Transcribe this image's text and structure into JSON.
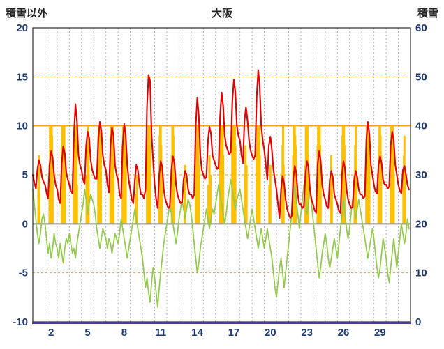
{
  "chart_data": {
    "type": "line+bar",
    "title": "大阪",
    "left_axis": {
      "label": "積雪以外",
      "min": -10,
      "max": 20,
      "ticks": [
        20,
        15,
        10,
        5,
        0,
        -5,
        -10
      ]
    },
    "right_axis": {
      "label": "積雪",
      "min": 0,
      "max": 60,
      "ticks": [
        60,
        50,
        40,
        30,
        20,
        10,
        0
      ]
    },
    "x_axis": {
      "days": 31,
      "tick_days": [
        2,
        5,
        8,
        11,
        14,
        17,
        20,
        23,
        26,
        29
      ]
    },
    "grid": {
      "vertical_per_day": true,
      "horizontal_lines": [
        15,
        10,
        5,
        -5
      ],
      "solid_horizontal_line": 10,
      "zero_line": 0
    },
    "colors": {
      "red_line": "#e00000",
      "green_line": "#92c94a",
      "orange_bars": "#ffc000",
      "vertical_grid": "#b3b3b3",
      "horizontal_grid": "#f0a202",
      "zero_line": "#8c8c8c",
      "plot_border": "#000000",
      "bottom_axis": "#4b3c8c",
      "axis_text": "#1f3a6e",
      "header_text": "#222222"
    },
    "sample_hours": [
      0,
      3,
      6,
      9,
      12,
      15,
      18,
      21
    ],
    "series": [
      {
        "name": "red-line",
        "axis": "left",
        "values": [
          5.0,
          4.2,
          3.6,
          5.5,
          6.5,
          6.0,
          4.8,
          4.3,
          4.0,
          3.2,
          2.6,
          6.0,
          7.4,
          6.8,
          5.0,
          4.0,
          3.5,
          2.5,
          2.1,
          6.2,
          7.9,
          7.2,
          5.2,
          4.5,
          4.0,
          3.3,
          3.1,
          9.0,
          12.2,
          10.5,
          7.0,
          6.0,
          5.5,
          4.5,
          4.1,
          8.0,
          9.4,
          8.8,
          6.5,
          5.5,
          5.0,
          4.6,
          4.6,
          8.5,
          10.4,
          9.5,
          7.0,
          6.0,
          5.5,
          4.0,
          3.2,
          8.0,
          9.8,
          9.0,
          6.0,
          5.0,
          4.5,
          3.0,
          2.6,
          8.0,
          10.2,
          9.0,
          6.0,
          4.5,
          3.5,
          2.5,
          2.1,
          4.5,
          6.0,
          5.5,
          4.0,
          3.0,
          3.0,
          2.6,
          3.5,
          12.0,
          15.2,
          14.6,
          9.0,
          6.5,
          4.0,
          2.5,
          1.6,
          5.0,
          6.4,
          5.8,
          3.5,
          2.5,
          2.0,
          1.6,
          1.8,
          5.5,
          6.9,
          6.2,
          4.0,
          3.0,
          2.5,
          2.1,
          2.2,
          4.5,
          5.4,
          5.0,
          3.5,
          3.0,
          3.0,
          2.6,
          3.0,
          10.0,
          12.9,
          11.0,
          7.0,
          5.5,
          5.0,
          4.6,
          4.8,
          8.5,
          9.9,
          9.2,
          7.0,
          6.5,
          6.0,
          5.6,
          5.8,
          11.0,
          13.4,
          12.0,
          9.0,
          8.0,
          7.5,
          7.1,
          7.3,
          12.5,
          14.7,
          13.5,
          10.0,
          9.0,
          8.5,
          7.0,
          6.2,
          10.5,
          11.9,
          10.5,
          8.5,
          7.5,
          7.0,
          6.6,
          7.0,
          13.0,
          15.7,
          14.0,
          10.0,
          8.5,
          7.5,
          6.0,
          4.5,
          8.0,
          8.9,
          7.5,
          5.5,
          4.5,
          3.5,
          2.0,
          0.6,
          3.5,
          4.9,
          4.2,
          2.5,
          1.5,
          1.0,
          0.6,
          0.8,
          4.5,
          5.9,
          5.2,
          3.0,
          2.0,
          2.0,
          1.6,
          1.8,
          5.0,
          6.4,
          5.8,
          3.5,
          2.5,
          2.0,
          1.4,
          1.1,
          6.0,
          7.4,
          6.5,
          4.0,
          3.0,
          2.5,
          1.8,
          1.6,
          4.5,
          5.4,
          4.8,
          3.0,
          2.5,
          2.0,
          1.3,
          1.1,
          5.0,
          6.4,
          5.6,
          3.5,
          2.5,
          2.0,
          1.6,
          1.7,
          4.5,
          5.4,
          4.8,
          3.5,
          3.0,
          3.0,
          2.6,
          2.8,
          8.5,
          10.4,
          9.2,
          6.0,
          5.0,
          4.0,
          3.3,
          3.1,
          6.0,
          6.9,
          6.2,
          4.5,
          4.0,
          4.0,
          3.6,
          3.8,
          8.0,
          9.4,
          8.5,
          6.0,
          5.0,
          4.0,
          3.4,
          3.1,
          5.5,
          5.9,
          5.0,
          4.0,
          3.5
        ]
      },
      {
        "name": "green-line",
        "axis": "left",
        "values": [
          3.5,
          2.0,
          0.5,
          -1.0,
          -2.0,
          -1.0,
          0.5,
          1.0,
          0.0,
          -1.5,
          -3.0,
          -2.0,
          -3.5,
          -2.5,
          -1.0,
          -2.0,
          -2.5,
          -3.5,
          -2.0,
          -3.0,
          -4.0,
          -2.5,
          -1.5,
          -2.0,
          -1.0,
          -2.0,
          -3.0,
          -2.5,
          -3.5,
          -2.0,
          -1.0,
          0.0,
          1.0,
          2.0,
          3.5,
          2.5,
          1.0,
          2.0,
          3.0,
          2.5,
          2.0,
          1.0,
          -0.5,
          -1.5,
          -2.5,
          -1.5,
          -0.5,
          -1.0,
          -1.5,
          -2.5,
          -1.5,
          -2.0,
          -3.0,
          -2.0,
          -1.0,
          -1.5,
          -2.0,
          -1.0,
          0.5,
          -0.5,
          -1.5,
          -2.5,
          -3.5,
          -2.5,
          -1.5,
          -0.5,
          0.5,
          1.5,
          0.5,
          -0.5,
          -1.5,
          -2.5,
          -3.5,
          -5.0,
          -6.5,
          -5.5,
          -7.0,
          -8.0,
          -6.0,
          -4.5,
          -5.5,
          -7.0,
          -8.5,
          -6.5,
          -5.0,
          -3.5,
          -2.0,
          -1.0,
          0.0,
          1.0,
          2.0,
          1.0,
          0.0,
          -1.0,
          -2.0,
          -1.0,
          0.5,
          1.5,
          2.5,
          1.5,
          0.5,
          1.5,
          2.5,
          2.0,
          1.0,
          -0.5,
          -2.0,
          -3.5,
          -5.0,
          -4.0,
          -2.5,
          -1.5,
          -0.5,
          0.5,
          1.5,
          0.5,
          -0.5,
          0.5,
          1.5,
          1.0,
          2.0,
          3.0,
          4.0,
          3.0,
          2.0,
          1.0,
          0.0,
          1.0,
          2.5,
          3.5,
          4.5,
          3.5,
          2.5,
          1.5,
          2.5,
          3.0,
          3.5,
          2.5,
          1.5,
          0.5,
          -0.5,
          -1.5,
          -0.5,
          0.5,
          1.5,
          0.5,
          -0.5,
          -1.5,
          -2.5,
          -1.5,
          -0.5,
          -1.5,
          -2.5,
          -1.5,
          -0.5,
          -1.5,
          -2.5,
          -3.5,
          -5.0,
          -6.5,
          -7.5,
          -6.0,
          -4.5,
          -3.5,
          -5.0,
          -6.5,
          -5.0,
          -3.5,
          -2.0,
          -0.5,
          1.0,
          2.5,
          4.0,
          2.5,
          1.0,
          -0.5,
          1.0,
          2.5,
          4.0,
          2.5,
          1.0,
          2.0,
          3.5,
          2.0,
          0.5,
          -1.0,
          -2.5,
          -4.0,
          -5.5,
          -4.5,
          -3.0,
          -2.0,
          -1.0,
          -2.0,
          -3.5,
          -4.5,
          -3.5,
          -2.5,
          -1.5,
          -2.5,
          -3.5,
          -2.0,
          -0.5,
          1.0,
          2.5,
          1.0,
          -0.5,
          -1.5,
          -0.5,
          1.0,
          2.5,
          1.5,
          0.5,
          1.5,
          2.5,
          1.5,
          0.5,
          -0.5,
          -1.5,
          -2.5,
          -3.5,
          -2.5,
          -1.5,
          -0.5,
          -1.5,
          -3.0,
          -4.5,
          -5.5,
          -4.5,
          -3.0,
          -1.5,
          -2.5,
          -3.5,
          -5.0,
          -6.0,
          -4.5,
          -3.0,
          -1.5,
          -3.0,
          -4.5,
          -3.0,
          -1.5,
          0.0,
          -1.0,
          -2.0,
          -1.0,
          0.5,
          -0.5
        ]
      }
    ],
    "orange_bars_by_day": {
      "1": [
        [
          11,
          4
        ],
        [
          12,
          7
        ],
        [
          13,
          3
        ]
      ],
      "2": [
        [
          9,
          6
        ],
        [
          10,
          10
        ],
        [
          11,
          10
        ],
        [
          12,
          10
        ],
        [
          13,
          10
        ],
        [
          14,
          9
        ],
        [
          15,
          5
        ]
      ],
      "3": [
        [
          9,
          8
        ],
        [
          10,
          10
        ],
        [
          11,
          10
        ],
        [
          12,
          10
        ],
        [
          13,
          10
        ],
        [
          14,
          10
        ],
        [
          15,
          6
        ]
      ],
      "4": [
        [
          9,
          7
        ],
        [
          10,
          10
        ],
        [
          11,
          10
        ],
        [
          12,
          10
        ],
        [
          13,
          9
        ],
        [
          14,
          10
        ],
        [
          15,
          4
        ]
      ],
      "5": [
        [
          10,
          5
        ],
        [
          12,
          8
        ],
        [
          13,
          10
        ],
        [
          14,
          6
        ]
      ],
      "6": [
        [
          9,
          9
        ],
        [
          10,
          10
        ],
        [
          11,
          10
        ],
        [
          12,
          10
        ],
        [
          13,
          10
        ],
        [
          14,
          8
        ]
      ],
      "7": [
        [
          9,
          6
        ],
        [
          10,
          10
        ],
        [
          11,
          9
        ],
        [
          12,
          10
        ],
        [
          13,
          10
        ],
        [
          14,
          10
        ],
        [
          15,
          5
        ]
      ],
      "8": [
        [
          9,
          8
        ],
        [
          10,
          10
        ],
        [
          11,
          10
        ],
        [
          12,
          10
        ],
        [
          13,
          10
        ],
        [
          14,
          9
        ],
        [
          15,
          7
        ]
      ],
      "9": [
        [
          11,
          3
        ],
        [
          13,
          5
        ]
      ],
      "10": [
        [
          9,
          9
        ],
        [
          10,
          10
        ],
        [
          11,
          10
        ],
        [
          12,
          10
        ],
        [
          13,
          10
        ],
        [
          14,
          10
        ],
        [
          15,
          8
        ]
      ],
      "11": [
        [
          9,
          5
        ],
        [
          10,
          9
        ],
        [
          11,
          10
        ],
        [
          12,
          10
        ],
        [
          13,
          8
        ],
        [
          14,
          6
        ]
      ],
      "12": [
        [
          10,
          7
        ],
        [
          11,
          10
        ],
        [
          12,
          10
        ],
        [
          13,
          9
        ],
        [
          14,
          5
        ]
      ],
      "13": [
        [
          11,
          4
        ],
        [
          12,
          6
        ]
      ],
      "14": [
        [
          9,
          8
        ],
        [
          10,
          10
        ],
        [
          11,
          10
        ],
        [
          12,
          10
        ],
        [
          13,
          10
        ],
        [
          14,
          9
        ],
        [
          15,
          6
        ]
      ],
      "15": [
        [
          10,
          4
        ],
        [
          12,
          7
        ],
        [
          14,
          5
        ]
      ],
      "16": [
        [
          9,
          7
        ],
        [
          10,
          10
        ],
        [
          11,
          10
        ],
        [
          12,
          10
        ],
        [
          13,
          10
        ],
        [
          14,
          10
        ],
        [
          15,
          7
        ]
      ],
      "17": [
        [
          9,
          8
        ],
        [
          10,
          10
        ],
        [
          11,
          10
        ],
        [
          12,
          10
        ],
        [
          13,
          10
        ],
        [
          14,
          10
        ],
        [
          15,
          8
        ]
      ],
      "18": [
        [
          10,
          5
        ],
        [
          11,
          8
        ],
        [
          13,
          6
        ]
      ],
      "19": [
        [
          9,
          8
        ],
        [
          10,
          10
        ],
        [
          11,
          10
        ],
        [
          12,
          10
        ],
        [
          13,
          10
        ],
        [
          14,
          10
        ],
        [
          15,
          7
        ]
      ],
      "20": [
        [
          10,
          4
        ],
        [
          12,
          6
        ]
      ],
      "21": [
        [
          11,
          5
        ],
        [
          12,
          8
        ],
        [
          13,
          10
        ],
        [
          14,
          6
        ]
      ],
      "22": [
        [
          9,
          7
        ],
        [
          10,
          10
        ],
        [
          11,
          10
        ],
        [
          12,
          10
        ],
        [
          13,
          9
        ],
        [
          14,
          8
        ]
      ],
      "23": [
        [
          9,
          6
        ],
        [
          10,
          10
        ],
        [
          11,
          10
        ],
        [
          12,
          10
        ],
        [
          13,
          10
        ],
        [
          14,
          7
        ]
      ],
      "24": [
        [
          9,
          8
        ],
        [
          10,
          10
        ],
        [
          11,
          10
        ],
        [
          12,
          9
        ],
        [
          13,
          10
        ],
        [
          14,
          8
        ],
        [
          15,
          5
        ]
      ],
      "25": [
        [
          11,
          4
        ],
        [
          12,
          7
        ],
        [
          13,
          5
        ]
      ],
      "26": [
        [
          9,
          6
        ],
        [
          10,
          9
        ],
        [
          11,
          10
        ],
        [
          12,
          10
        ],
        [
          13,
          10
        ],
        [
          14,
          8
        ]
      ],
      "27": [
        [
          10,
          5
        ],
        [
          11,
          8
        ],
        [
          12,
          10
        ],
        [
          13,
          7
        ]
      ],
      "28": [
        [
          9,
          7
        ],
        [
          10,
          10
        ],
        [
          11,
          10
        ],
        [
          12,
          10
        ],
        [
          13,
          10
        ],
        [
          14,
          9
        ],
        [
          15,
          6
        ]
      ],
      "29": [
        [
          9,
          5
        ],
        [
          10,
          8
        ],
        [
          11,
          10
        ],
        [
          12,
          10
        ],
        [
          13,
          9
        ],
        [
          14,
          7
        ]
      ],
      "30": [
        [
          9,
          8
        ],
        [
          10,
          10
        ],
        [
          11,
          10
        ],
        [
          12,
          10
        ],
        [
          13,
          10
        ],
        [
          14,
          9
        ],
        [
          15,
          5
        ]
      ],
      "31": [
        [
          10,
          4
        ],
        [
          11,
          7
        ],
        [
          12,
          9
        ],
        [
          13,
          6
        ]
      ]
    }
  }
}
